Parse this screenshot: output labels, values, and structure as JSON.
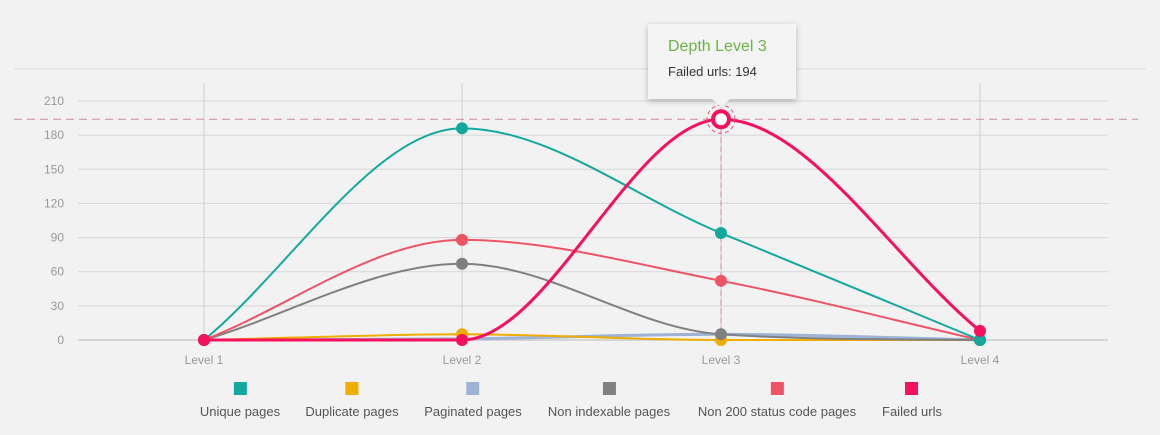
{
  "chart_data": {
    "type": "line",
    "categories": [
      "Level 1",
      "Level 2",
      "Level 3",
      "Level 4"
    ],
    "ylim": [
      0,
      210
    ],
    "yticks": [
      0,
      30,
      60,
      90,
      120,
      150,
      180,
      210
    ],
    "grid": true,
    "legend_placement": "bottom",
    "series": [
      {
        "name": "Unique pages",
        "color": "#13a89e",
        "values": [
          0,
          186,
          94,
          0
        ]
      },
      {
        "name": "Duplicate pages",
        "color": "#f0ad00",
        "values": [
          0,
          5,
          0,
          0
        ]
      },
      {
        "name": "Paginated pages",
        "color": "#9db4d6",
        "values": [
          0,
          1,
          5,
          0
        ]
      },
      {
        "name": "Non indexable pages",
        "color": "#808080",
        "values": [
          0,
          67,
          5,
          0
        ]
      },
      {
        "name": "Non 200 status code pages",
        "color": "#ef5466",
        "values": [
          0,
          88,
          52,
          0
        ]
      },
      {
        "name": "Failed urls",
        "color": "#f7105c",
        "values": [
          0,
          0,
          194,
          8
        ]
      }
    ],
    "tooltip": {
      "title": "Depth Level 3",
      "text": "Failed urls: 194",
      "category_index": 2,
      "series_index": 5,
      "value": 194
    }
  }
}
